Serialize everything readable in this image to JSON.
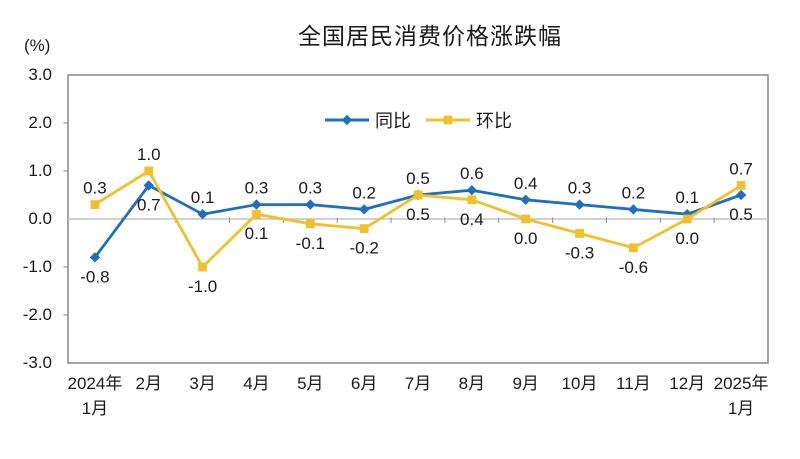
{
  "chart_data": {
    "type": "line",
    "title": "全国居民消费价格涨跌幅",
    "unit": "(%)",
    "categories": [
      [
        "2024年",
        "1月"
      ],
      [
        "2月"
      ],
      [
        "3月"
      ],
      [
        "4月"
      ],
      [
        "5月"
      ],
      [
        "6月"
      ],
      [
        "7月"
      ],
      [
        "8月"
      ],
      [
        "9月"
      ],
      [
        "10月"
      ],
      [
        "11月"
      ],
      [
        "12月"
      ],
      [
        "2025年",
        "1月"
      ]
    ],
    "series": [
      {
        "name": "同比",
        "color": "#1F6FC0",
        "marker": "diamond",
        "values": [
          -0.8,
          0.7,
          0.1,
          0.3,
          0.3,
          0.2,
          0.5,
          0.6,
          0.4,
          0.3,
          0.2,
          0.1,
          0.5
        ]
      },
      {
        "name": "环比",
        "color": "#F2C029",
        "marker": "square",
        "values": [
          0.3,
          1.0,
          -1.0,
          0.1,
          -0.1,
          -0.2,
          0.5,
          0.4,
          0.0,
          -0.3,
          -0.6,
          0.0,
          0.7
        ]
      }
    ],
    "ylim": [
      -3.0,
      3.0
    ],
    "ytick_step": 1.0,
    "yticks": [
      "3.0",
      "2.0",
      "1.0",
      "0.0",
      "-1.0",
      "-2.0",
      "-3.0"
    ],
    "grid": false,
    "zero_line": true,
    "legend_position": "top-center-inside",
    "label_format": "one-decimal",
    "colors": {
      "border": "#8F8F8F",
      "zero_line": "#C2C2C2",
      "tick": "#8F8F8F",
      "text": "#1A1A1A",
      "background": "#FFFFFF"
    }
  }
}
